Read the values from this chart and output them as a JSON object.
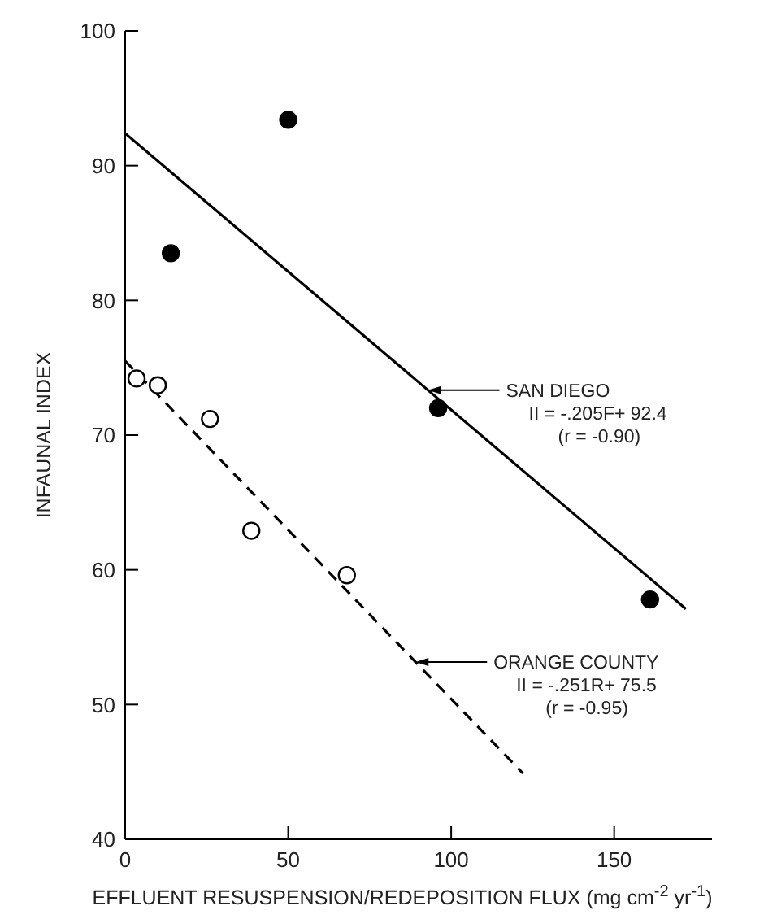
{
  "chart_data": {
    "type": "scatter",
    "xlabel": "EFFLUENT RESUSPENSION/REDEPOSITION FLUX (mg cm$^{-2}$ yr$^{-1}$)",
    "ylabel": "INFAUNAL INDEX",
    "xlim": [
      0,
      180
    ],
    "xticks": [
      0,
      50,
      100,
      150
    ],
    "ylim": [
      40,
      100
    ],
    "yticks": [
      40,
      50,
      60,
      70,
      80,
      90,
      100
    ],
    "grid": false,
    "series": [
      {
        "color": "#000000",
        "marker": "circle",
        "x": [
          14,
          50,
          96,
          161
        ],
        "values": [
          83.5,
          93.4,
          72,
          57.8
        ]
      },
      {
        "color": "#000000",
        "marker": "circle",
        "x": [
          3.5,
          10,
          26,
          38.7,
          68
        ],
        "values": [
          74.2,
          73.7,
          71.2,
          62.9,
          59.6
        ]
      },
      {
        "type": "line",
        "color": "#000000",
        "marker": "none",
        "line_style": "solid",
        "x": [
          0,
          172
        ],
        "values": [
          92.4,
          57.1
        ]
      },
      {
        "type": "line",
        "color": "#000000",
        "marker": "none",
        "line_style": "dashed",
        "x": [
          0,
          122
        ],
        "values": [
          75.5,
          44.9
        ]
      }
    ],
    "annotations": [
      "SAN DIEGO\nII = -.205F+ 92.4\n(r = -0.90)",
      "ORANGE COUNTY\nII = -.251R+ 75.5\n(r = -0.95)"
    ]
  }
}
